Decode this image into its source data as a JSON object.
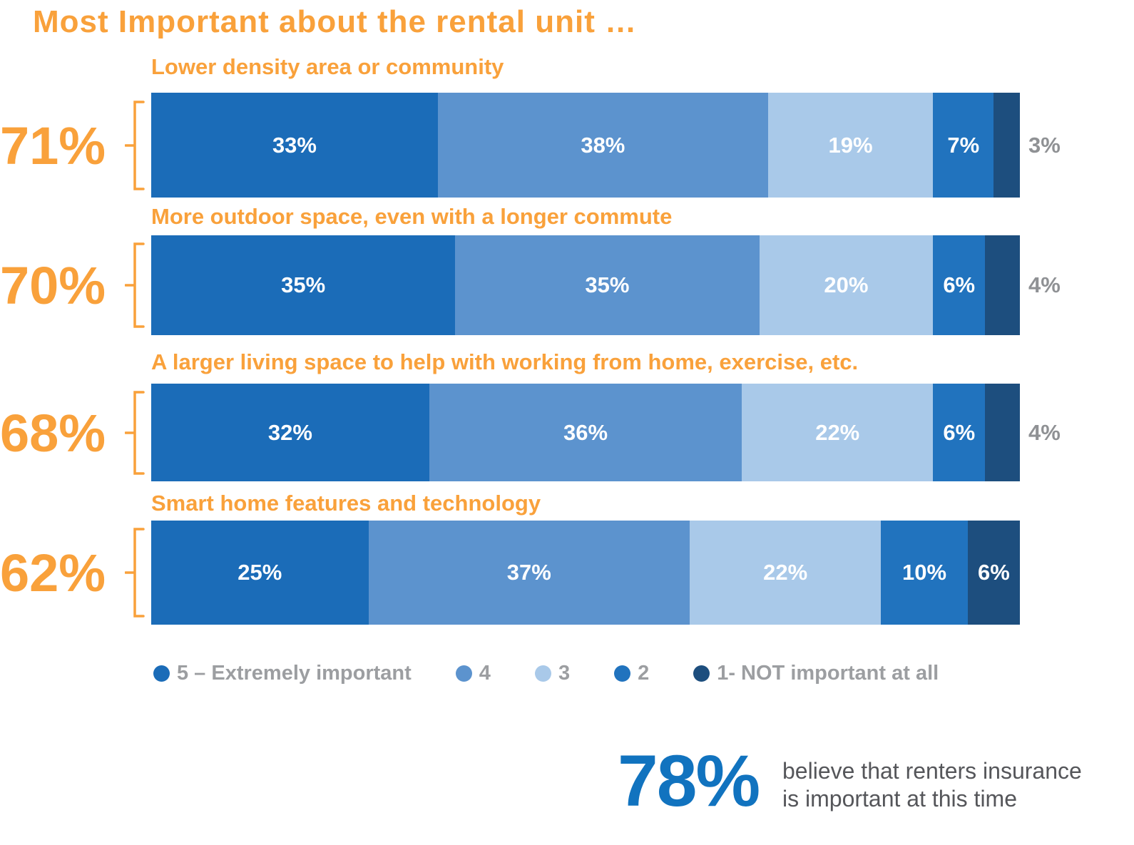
{
  "title": "Most Important about the rental unit …",
  "colors": {
    "accent_orange": "#F9A13B",
    "outside_label_gray": "#8F9194",
    "legend_text_gray": "#9C9EA1",
    "footnote_blue": "#1173BF",
    "footnote_text_gray": "#55565A"
  },
  "chart_data": {
    "type": "bar",
    "subtype": "horizontal-stacked-100pct",
    "title": "Most Important about the rental unit …",
    "legend_position": "bottom",
    "legend": [
      {
        "label": "5 – Extremely important",
        "color": "#1B6CB8"
      },
      {
        "label": "4",
        "color": "#5C93CE"
      },
      {
        "label": "3",
        "color": "#A9C9E9"
      },
      {
        "label": "2",
        "color": "#2173BE"
      },
      {
        "label": "1- NOT important at all",
        "color": "#1D4E7E"
      }
    ],
    "rows": [
      {
        "label": "Lower density area or community",
        "total": "71%",
        "segments": [
          {
            "value": 33,
            "label": "33%"
          },
          {
            "value": 38,
            "label": "38%"
          },
          {
            "value": 19,
            "label": "19%"
          },
          {
            "value": 7,
            "label": "7%"
          },
          {
            "value": 3,
            "label": "3%"
          }
        ],
        "last_label_outside": true
      },
      {
        "label": "More outdoor space, even with a longer commute",
        "total": "70%",
        "segments": [
          {
            "value": 35,
            "label": "35%"
          },
          {
            "value": 35,
            "label": "35%"
          },
          {
            "value": 20,
            "label": "20%"
          },
          {
            "value": 6,
            "label": "6%"
          },
          {
            "value": 4,
            "label": "4%"
          }
        ],
        "last_label_outside": true
      },
      {
        "label": "A larger living space to help with working from home, exercise, etc.",
        "total": "68%",
        "segments": [
          {
            "value": 32,
            "label": "32%"
          },
          {
            "value": 36,
            "label": "36%"
          },
          {
            "value": 22,
            "label": "22%"
          },
          {
            "value": 6,
            "label": "6%"
          },
          {
            "value": 4,
            "label": "4%"
          }
        ],
        "last_label_outside": true
      },
      {
        "label": "Smart home features and technology",
        "total": "62%",
        "segments": [
          {
            "value": 25,
            "label": "25%"
          },
          {
            "value": 37,
            "label": "37%"
          },
          {
            "value": 22,
            "label": "22%"
          },
          {
            "value": 10,
            "label": "10%"
          },
          {
            "value": 6,
            "label": "6%"
          }
        ],
        "last_label_outside": false
      }
    ]
  },
  "footnote": {
    "stat": "78%",
    "line1": "believe that renters insurance",
    "line2": "is important at this time"
  }
}
